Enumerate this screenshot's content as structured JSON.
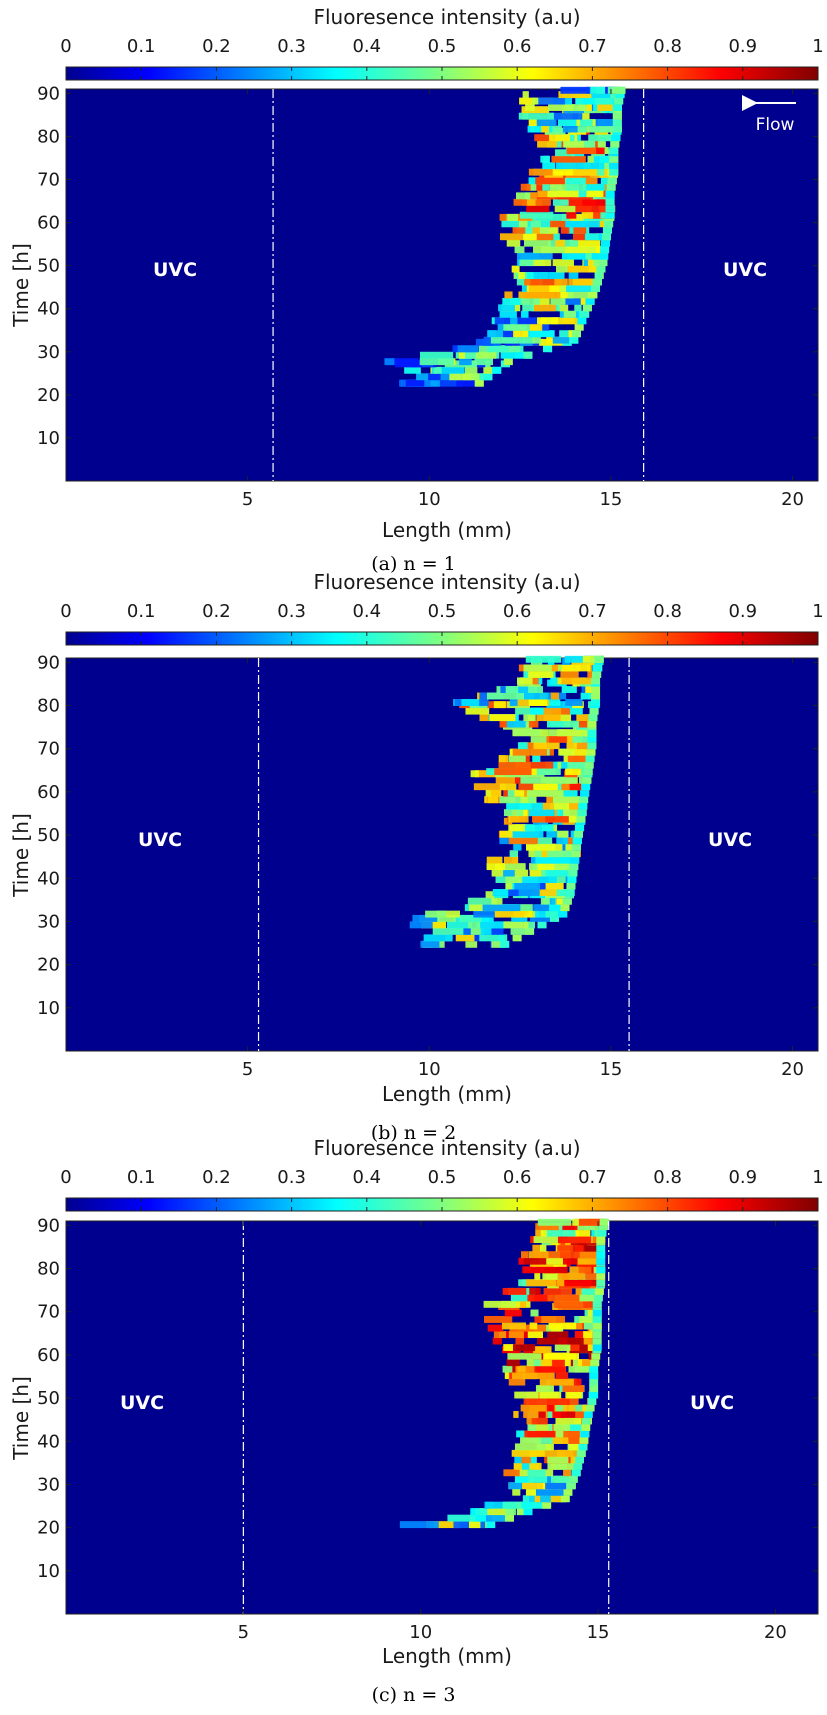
{
  "chart_data": [
    {
      "type": "heatmap",
      "caption": "(a) n = 1",
      "colorbar": {
        "label": "Fluoresence intensity (a.u)",
        "ticks": [
          "0",
          "0.1",
          "0.2",
          "0.3",
          "0.4",
          "0.5",
          "0.6",
          "0.7",
          "0.8",
          "0.9",
          "1"
        ],
        "range": [
          0,
          1
        ],
        "colormap": "jet"
      },
      "xlabel": "Length (mm)",
      "ylabel": "Time [h]",
      "xticks": [
        "5",
        "10",
        "15",
        "20"
      ],
      "yticks": [
        "10",
        "20",
        "30",
        "40",
        "50",
        "60",
        "70",
        "80",
        "90"
      ],
      "xlim": [
        0,
        20.7
      ],
      "ylim": [
        0,
        91
      ],
      "uvc_boundaries_mm": [
        5.7,
        15.9
      ],
      "uvc_labels": [
        "UVC",
        "UVC"
      ],
      "flow_label": "Flow",
      "flow_direction": "right-to-left",
      "biofilm_front": [
        {
          "t": 22,
          "x_left": 8.9,
          "x_right": 11.5,
          "intensity": 0.3
        },
        {
          "t": 27,
          "x_left": 8.7,
          "x_right": 12.3,
          "intensity": 0.35
        },
        {
          "t": 32,
          "x_left": 11.4,
          "x_right": 14.1,
          "intensity": 0.4
        },
        {
          "t": 38,
          "x_left": 11.8,
          "x_right": 14.4,
          "intensity": 0.45
        },
        {
          "t": 44,
          "x_left": 12.0,
          "x_right": 14.7,
          "intensity": 0.55
        },
        {
          "t": 50,
          "x_left": 12.3,
          "x_right": 14.9,
          "intensity": 0.5
        },
        {
          "t": 56,
          "x_left": 11.7,
          "x_right": 15.0,
          "intensity": 0.55
        },
        {
          "t": 61,
          "x_left": 11.9,
          "x_right": 15.1,
          "intensity": 0.65
        },
        {
          "t": 66,
          "x_left": 12.4,
          "x_right": 15.1,
          "intensity": 0.6
        },
        {
          "t": 71,
          "x_left": 12.7,
          "x_right": 15.2,
          "intensity": 0.55
        },
        {
          "t": 76,
          "x_left": 12.9,
          "x_right": 15.2,
          "intensity": 0.6
        },
        {
          "t": 81,
          "x_left": 12.6,
          "x_right": 15.3,
          "intensity": 0.45
        },
        {
          "t": 86,
          "x_left": 12.3,
          "x_right": 15.3,
          "intensity": 0.4
        },
        {
          "t": 90,
          "x_left": 12.5,
          "x_right": 15.4,
          "intensity": 0.35
        }
      ]
    },
    {
      "type": "heatmap",
      "caption": "(b) n = 2",
      "colorbar": {
        "label": "Fluoresence intensity (a.u)",
        "ticks": [
          "0",
          "0.1",
          "0.2",
          "0.3",
          "0.4",
          "0.5",
          "0.6",
          "0.7",
          "0.8",
          "0.9",
          "1"
        ],
        "range": [
          0,
          1
        ],
        "colormap": "jet"
      },
      "xlabel": "Length (mm)",
      "ylabel": "Time [h]",
      "xticks": [
        "5",
        "10",
        "15",
        "20"
      ],
      "yticks": [
        "10",
        "20",
        "30",
        "40",
        "50",
        "60",
        "70",
        "80",
        "90"
      ],
      "xlim": [
        0,
        20.7
      ],
      "ylim": [
        0,
        91
      ],
      "uvc_boundaries_mm": [
        5.3,
        15.5
      ],
      "uvc_labels": [
        "UVC",
        "UVC"
      ],
      "biofilm_front": [
        {
          "t": 24,
          "x_left": 9.1,
          "x_right": 12.2,
          "intensity": 0.4
        },
        {
          "t": 31,
          "x_left": 9.6,
          "x_right": 13.8,
          "intensity": 0.45
        },
        {
          "t": 36,
          "x_left": 11.6,
          "x_right": 14.0,
          "intensity": 0.4
        },
        {
          "t": 42,
          "x_left": 11.4,
          "x_right": 14.1,
          "intensity": 0.45
        },
        {
          "t": 48,
          "x_left": 11.8,
          "x_right": 14.2,
          "intensity": 0.5
        },
        {
          "t": 53,
          "x_left": 12.0,
          "x_right": 14.3,
          "intensity": 0.55
        },
        {
          "t": 59,
          "x_left": 11.2,
          "x_right": 14.4,
          "intensity": 0.6
        },
        {
          "t": 64,
          "x_left": 11.1,
          "x_right": 14.5,
          "intensity": 0.55
        },
        {
          "t": 70,
          "x_left": 12.4,
          "x_right": 14.6,
          "intensity": 0.6
        },
        {
          "t": 75,
          "x_left": 11.7,
          "x_right": 14.6,
          "intensity": 0.55
        },
        {
          "t": 80,
          "x_left": 10.4,
          "x_right": 14.7,
          "intensity": 0.45
        },
        {
          "t": 85,
          "x_left": 12.3,
          "x_right": 14.7,
          "intensity": 0.5
        },
        {
          "t": 90,
          "x_left": 12.4,
          "x_right": 14.8,
          "intensity": 0.4
        }
      ]
    },
    {
      "type": "heatmap",
      "caption": "(c) n = 3",
      "colorbar": {
        "label": "Fluoresence intensity (a.u)",
        "ticks": [
          "0",
          "0.1",
          "0.2",
          "0.3",
          "0.4",
          "0.5",
          "0.6",
          "0.7",
          "0.8",
          "0.9",
          "1"
        ],
        "range": [
          0,
          1
        ],
        "colormap": "jet"
      },
      "xlabel": "Length (mm)",
      "ylabel": "Time [h]",
      "xticks": [
        "5",
        "10",
        "15",
        "20"
      ],
      "yticks": [
        "10",
        "20",
        "30",
        "40",
        "50",
        "60",
        "70",
        "80",
        "90"
      ],
      "xlim": [
        0,
        21.2
      ],
      "ylim": [
        0,
        91
      ],
      "uvc_boundaries_mm": [
        5.0,
        15.3
      ],
      "uvc_labels": [
        "UVC",
        "UVC"
      ],
      "biofilm_front": [
        {
          "t": 20,
          "x_left": 9.3,
          "x_right": 12.1,
          "intensity": 0.4
        },
        {
          "t": 26,
          "x_left": 12.6,
          "x_right": 14.2,
          "intensity": 0.45
        },
        {
          "t": 32,
          "x_left": 12.2,
          "x_right": 14.5,
          "intensity": 0.55
        },
        {
          "t": 38,
          "x_left": 12.4,
          "x_right": 14.7,
          "intensity": 0.6
        },
        {
          "t": 44,
          "x_left": 12.6,
          "x_right": 14.8,
          "intensity": 0.65
        },
        {
          "t": 50,
          "x_left": 12.5,
          "x_right": 15.0,
          "intensity": 0.6
        },
        {
          "t": 56,
          "x_left": 12.2,
          "x_right": 15.0,
          "intensity": 0.7
        },
        {
          "t": 61,
          "x_left": 12.3,
          "x_right": 15.1,
          "intensity": 0.75
        },
        {
          "t": 66,
          "x_left": 11.4,
          "x_right": 15.1,
          "intensity": 0.6
        },
        {
          "t": 71,
          "x_left": 11.6,
          "x_right": 15.1,
          "intensity": 0.65
        },
        {
          "t": 76,
          "x_left": 12.7,
          "x_right": 15.2,
          "intensity": 0.65
        },
        {
          "t": 81,
          "x_left": 12.7,
          "x_right": 15.2,
          "intensity": 0.7
        },
        {
          "t": 86,
          "x_left": 13.0,
          "x_right": 15.2,
          "intensity": 0.6
        },
        {
          "t": 90,
          "x_left": 13.1,
          "x_right": 15.3,
          "intensity": 0.55
        }
      ]
    }
  ]
}
